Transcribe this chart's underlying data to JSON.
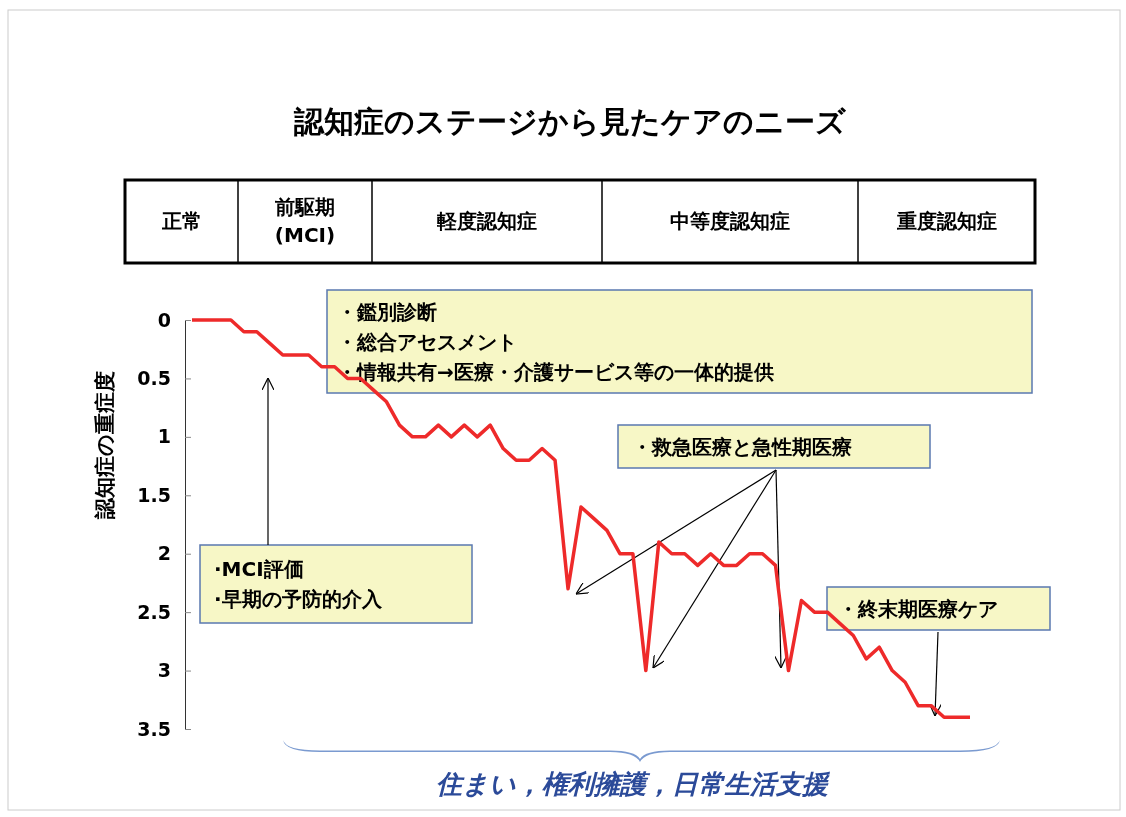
{
  "chart_data": {
    "type": "line",
    "title": "認知症のステージから見たケアのニーズ",
    "ylabel": "認知症の重症度",
    "categories": [
      null,
      null,
      null,
      null,
      null,
      null,
      null,
      null,
      null,
      null,
      null,
      null,
      null,
      null,
      null,
      null,
      null,
      null,
      null,
      null,
      null,
      null,
      null,
      null,
      null,
      null,
      null,
      null,
      null,
      null,
      null,
      null,
      null,
      null,
      null,
      null,
      null,
      null,
      null,
      null,
      null,
      null,
      null,
      null,
      null,
      null,
      null,
      null,
      null,
      null,
      null,
      null,
      null,
      null,
      null,
      null,
      null,
      null,
      null,
      null,
      null
    ],
    "series": [
      {
        "color": "#ee2a2a",
        "values": [
          0,
          0,
          0,
          0,
          0.1,
          0.1,
          0.2,
          0.3,
          0.3,
          0.3,
          0.4,
          0.4,
          0.5,
          0.5,
          0.6,
          0.7,
          0.9,
          1.0,
          1.0,
          0.9,
          1.0,
          0.9,
          1.0,
          0.9,
          1.1,
          1.2,
          1.2,
          1.1,
          1.2,
          2.3,
          1.6,
          1.7,
          1.8,
          2.0,
          2.0,
          3.0,
          1.9,
          2.0,
          2.0,
          2.1,
          2.0,
          2.1,
          2.1,
          2.0,
          2.0,
          2.1,
          3.0,
          2.4,
          2.5,
          2.5,
          2.6,
          2.7,
          2.9,
          2.8,
          3.0,
          3.1,
          3.3,
          3.3,
          3.4,
          3.4,
          3.4
        ]
      }
    ],
    "ylim": [
      3.5,
      0
    ],
    "yticks": [
      0,
      0.5,
      1,
      1.5,
      2,
      2.5,
      3,
      3.5
    ],
    "tick_labels": "y",
    "annotations": [
      "正常",
      "前駆期\n(MCI)",
      "軽度認知症",
      "中等度認知症",
      "重度認知症",
      "·MCI評価",
      "·早期の予防的介入",
      "・鑑別診断",
      "・総合アセスメント",
      "・情報共有→医療・介護サービス等の一体的提供",
      "・救急医療と急性期医療",
      "・終末期医療ケア",
      "住まい，権利擁護，日常生活支援"
    ]
  }
}
